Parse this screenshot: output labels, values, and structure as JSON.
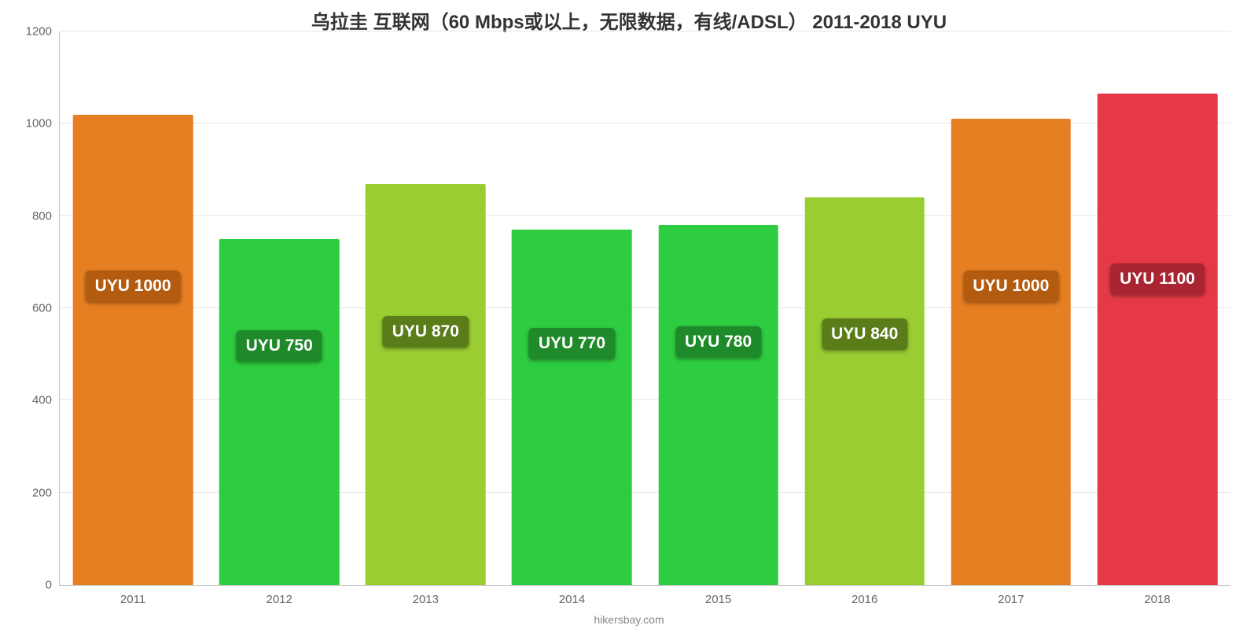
{
  "chart": {
    "type": "bar",
    "title": "乌拉圭 互联网（60 Mbps或以上，无限数据，有线/ADSL） 2011-2018 UYU",
    "title_fontsize": 24,
    "title_color": "#333333",
    "background_color": "#ffffff",
    "grid_color": "#e6e6e6",
    "axis_color": "#c0c0c0",
    "ylim": [
      0,
      1200
    ],
    "ytick_step": 200,
    "yticks": [
      0,
      200,
      400,
      600,
      800,
      1000,
      1200
    ],
    "ytick_fontsize": 15,
    "ytick_color": "#666666",
    "xtick_fontsize": 15,
    "xtick_color": "#666666",
    "bar_width_pct": 82,
    "bars": [
      {
        "category": "2011",
        "value": 1020,
        "label": "UYU 1000",
        "color": "#e67e22",
        "label_bg": "#b35c0f",
        "label_y": 580
      },
      {
        "category": "2012",
        "value": 750,
        "label": "UYU 750",
        "color": "#2ecc40",
        "label_bg": "#1e8a2a",
        "label_y": 450
      },
      {
        "category": "2013",
        "value": 870,
        "label": "UYU 870",
        "color": "#9acd32",
        "label_bg": "#5a7d19",
        "label_y": 480
      },
      {
        "category": "2014",
        "value": 770,
        "label": "UYU 770",
        "color": "#2ecc40",
        "label_bg": "#1e8a2a",
        "label_y": 455
      },
      {
        "category": "2015",
        "value": 780,
        "label": "UYU 780",
        "color": "#2ecc40",
        "label_bg": "#1e8a2a",
        "label_y": 458
      },
      {
        "category": "2016",
        "value": 840,
        "label": "UYU 840",
        "color": "#9acd32",
        "label_bg": "#5a7d19",
        "label_y": 475
      },
      {
        "category": "2017",
        "value": 1010,
        "label": "UYU 1000",
        "color": "#e67e22",
        "label_bg": "#b35c0f",
        "label_y": 580
      },
      {
        "category": "2018",
        "value": 1065,
        "label": "UYU 1100",
        "color": "#e63946",
        "label_bg": "#a82531",
        "label_y": 595
      }
    ],
    "label_fontsize": 21,
    "footer": "hikersbay.com",
    "footer_fontsize": 14,
    "footer_color": "#888888"
  }
}
